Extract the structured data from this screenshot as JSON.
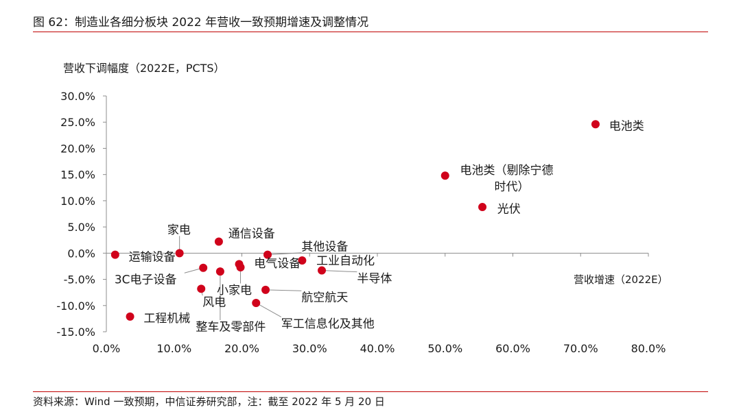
{
  "figure": {
    "title": "图 62：制造业各细分板块 2022 年营收一致预期增速及调整情况",
    "source": "资料来源：Wind 一致预期，中信证券研究部，注：截至 2022 年 5 月 20 日"
  },
  "chart_data": {
    "type": "scatter",
    "ylabel": "营收下调幅度（2022E，PCTS）",
    "xlabel": "营收增速（2022E）",
    "xlim": [
      0,
      0.8
    ],
    "ylim": [
      -0.15,
      0.3
    ],
    "x_ticks": [
      "0.0%",
      "10.0%",
      "20.0%",
      "30.0%",
      "40.0%",
      "50.0%",
      "60.0%",
      "70.0%",
      "80.0%"
    ],
    "y_ticks": [
      "30.0%",
      "25.0%",
      "20.0%",
      "15.0%",
      "10.0%",
      "5.0%",
      "0.0%",
      "-5.0%",
      "-10.0%",
      "-15.0%"
    ],
    "marker_color": "#d0021b",
    "points": [
      {
        "label": "电池类",
        "x": 0.722,
        "y": 0.246,
        "lx": 0.742,
        "ly": 0.243,
        "anchor": "start"
      },
      {
        "label": "电池类（剔除宁德",
        "label2": "时代）",
        "x": 0.5,
        "y": 0.148,
        "lx": 0.522,
        "ly": 0.159,
        "anchor": "start"
      },
      {
        "label": "光伏",
        "x": 0.555,
        "y": 0.088,
        "lx": 0.577,
        "ly": 0.085,
        "anchor": "start"
      },
      {
        "label": "家电",
        "x": 0.108,
        "y": 0.0,
        "lx": 0.09,
        "ly": 0.045,
        "anchor": "start"
      },
      {
        "label": "通信设备",
        "x": 0.166,
        "y": 0.022,
        "lx": 0.18,
        "ly": 0.038,
        "anchor": "start"
      },
      {
        "label": "其他设备",
        "x": 0.238,
        "y": -0.003,
        "lx": 0.288,
        "ly": 0.013,
        "anchor": "start"
      },
      {
        "label": "运输设备",
        "x": 0.013,
        "y": -0.003,
        "lx": 0.033,
        "ly": -0.007,
        "anchor": "start"
      },
      {
        "label": "电气设备",
        "x": 0.196,
        "y": -0.021,
        "lx": 0.218,
        "ly": -0.019,
        "anchor": "start"
      },
      {
        "label": "工业自动化",
        "x": 0.289,
        "y": -0.014,
        "lx": 0.31,
        "ly": -0.014,
        "anchor": "start"
      },
      {
        "label": "3C电子设备",
        "x": 0.143,
        "y": -0.028,
        "lx": 0.012,
        "ly": -0.05,
        "anchor": "start"
      },
      {
        "label": "小家电",
        "x": 0.198,
        "y": -0.027,
        "lx": 0.163,
        "ly": -0.07,
        "anchor": "start"
      },
      {
        "label": "半导体",
        "x": 0.318,
        "y": -0.033,
        "lx": 0.37,
        "ly": -0.048,
        "anchor": "start"
      },
      {
        "label": "航空航天",
        "x": 0.235,
        "y": -0.07,
        "lx": 0.288,
        "ly": -0.084,
        "anchor": "start"
      },
      {
        "label": "风电",
        "x": 0.14,
        "y": -0.068,
        "lx": 0.142,
        "ly": -0.093,
        "anchor": "start"
      },
      {
        "label": "整车及零部件",
        "x": 0.168,
        "y": -0.035,
        "lx": 0.132,
        "ly": -0.14,
        "anchor": "start"
      },
      {
        "label": "军工信息化及其他",
        "x": 0.221,
        "y": -0.095,
        "lx": 0.258,
        "ly": -0.134,
        "anchor": "start"
      },
      {
        "label": "工程机械",
        "x": 0.035,
        "y": -0.121,
        "lx": 0.055,
        "ly": -0.124,
        "anchor": "start"
      }
    ]
  }
}
